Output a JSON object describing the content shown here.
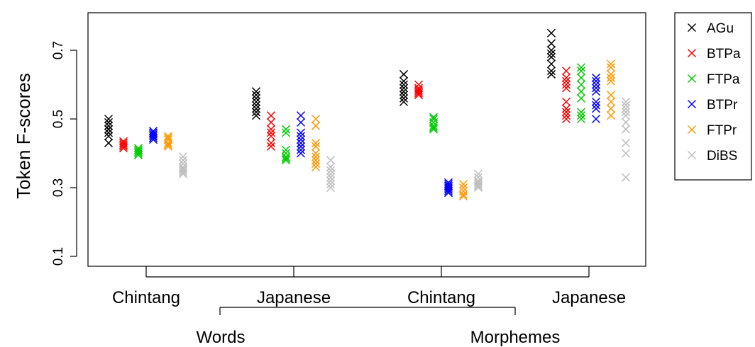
{
  "chart_data": {
    "type": "scatter",
    "xlabel": "",
    "ylabel": "Token F-scores",
    "ylim": [
      0.05,
      0.84
    ],
    "yticks": [
      "0.1",
      "0.3",
      "0.5",
      "0.7"
    ],
    "categories": [
      "Chintang",
      "Japanese",
      "Chintang",
      "Japanese"
    ],
    "groups": [
      {
        "label": "Words",
        "categories": [
          0,
          1
        ]
      },
      {
        "label": "Morphemes",
        "categories": [
          2,
          3
        ]
      }
    ],
    "grid": false,
    "legend_position": "right",
    "series": [
      {
        "name": "AGu",
        "color": "#000000",
        "values": [
          [
            0.43,
            0.45,
            0.46,
            0.47,
            0.47,
            0.48,
            0.49,
            0.5
          ],
          [
            0.51,
            0.52,
            0.53,
            0.54,
            0.55,
            0.56,
            0.57,
            0.58
          ],
          [
            0.55,
            0.56,
            0.57,
            0.58,
            0.59,
            0.6,
            0.61,
            0.63
          ],
          [
            0.63,
            0.64,
            0.66,
            0.68,
            0.69,
            0.7,
            0.72,
            0.75
          ]
        ]
      },
      {
        "name": "BTPa",
        "color": "#ff0000",
        "values": [
          [
            0.415,
            0.42,
            0.425,
            0.43,
            0.435
          ],
          [
            0.42,
            0.43,
            0.45,
            0.46,
            0.47,
            0.49,
            0.51
          ],
          [
            0.57,
            0.575,
            0.58,
            0.585,
            0.59,
            0.6
          ],
          [
            0.5,
            0.51,
            0.52,
            0.53,
            0.55,
            0.59,
            0.6,
            0.61,
            0.62,
            0.64
          ]
        ]
      },
      {
        "name": "FTPa",
        "color": "#00cc00",
        "values": [
          [
            0.395,
            0.4,
            0.405,
            0.41,
            0.415
          ],
          [
            0.38,
            0.385,
            0.39,
            0.4,
            0.41,
            0.46,
            0.47
          ],
          [
            0.47,
            0.475,
            0.48,
            0.49,
            0.5,
            0.505
          ],
          [
            0.5,
            0.51,
            0.52,
            0.56,
            0.58,
            0.6,
            0.62,
            0.64,
            0.65
          ]
        ]
      },
      {
        "name": "BTPr",
        "color": "#0000ff",
        "values": [
          [
            0.44,
            0.445,
            0.45,
            0.455,
            0.46,
            0.465
          ],
          [
            0.4,
            0.41,
            0.42,
            0.43,
            0.44,
            0.45,
            0.46,
            0.49,
            0.51
          ],
          [
            0.285,
            0.29,
            0.295,
            0.3,
            0.305,
            0.31,
            0.315
          ],
          [
            0.5,
            0.53,
            0.54,
            0.55,
            0.58,
            0.59,
            0.6,
            0.61,
            0.62
          ]
        ]
      },
      {
        "name": "FTPr",
        "color": "#ff9900",
        "values": [
          [
            0.42,
            0.425,
            0.43,
            0.44,
            0.445,
            0.45
          ],
          [
            0.36,
            0.37,
            0.38,
            0.39,
            0.4,
            0.42,
            0.43,
            0.48,
            0.5
          ],
          [
            0.275,
            0.28,
            0.29,
            0.3,
            0.31
          ],
          [
            0.51,
            0.53,
            0.55,
            0.57,
            0.61,
            0.62,
            0.63,
            0.65,
            0.66
          ]
        ]
      },
      {
        "name": "DiBS",
        "color": "#bebebe",
        "values": [
          [
            0.34,
            0.345,
            0.35,
            0.355,
            0.36,
            0.37,
            0.38,
            0.39
          ],
          [
            0.3,
            0.31,
            0.32,
            0.33,
            0.34,
            0.35,
            0.36,
            0.38
          ],
          [
            0.3,
            0.305,
            0.31,
            0.315,
            0.32,
            0.33,
            0.34
          ],
          [
            0.33,
            0.4,
            0.43,
            0.47,
            0.49,
            0.51,
            0.52,
            0.53,
            0.54,
            0.55
          ]
        ]
      }
    ]
  }
}
